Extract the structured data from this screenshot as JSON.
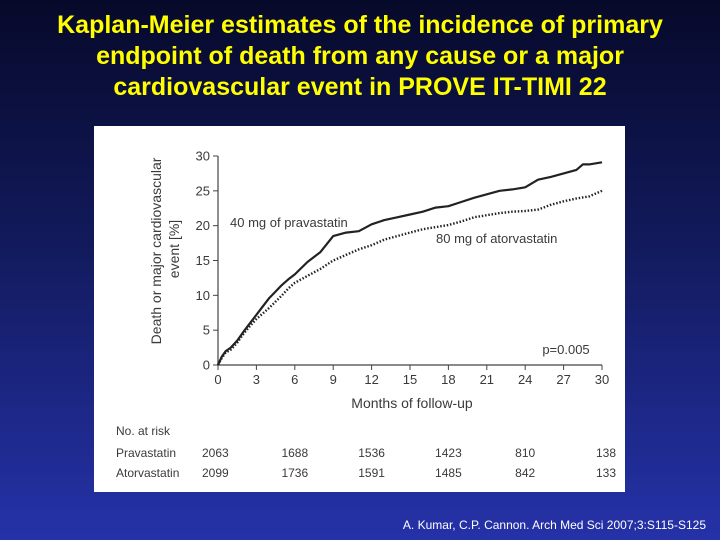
{
  "slide": {
    "title_lines": [
      "Kaplan-Meier estimates of the incidence of primary",
      "endpoint of death from any cause or a major",
      "cardiovascular event in PROVE IT-TIMI 22"
    ],
    "citation": "A. Kumar, C.P. Cannon. Arch Med Sci 2007;3:S115-S125"
  },
  "chart_data": {
    "type": "line",
    "title": "",
    "xlabel": "Months of follow-up",
    "ylabel_lines": [
      "Death or major cardiovascular",
      "event [%]"
    ],
    "xlim": [
      0,
      30
    ],
    "ylim": [
      0,
      30
    ],
    "xticks": [
      0,
      3,
      6,
      9,
      12,
      15,
      18,
      21,
      24,
      27,
      30
    ],
    "yticks": [
      0,
      5,
      10,
      15,
      20,
      25,
      30
    ],
    "annotation": "p=0.005",
    "series": [
      {
        "name": "40 mg of pravastatin",
        "style": "solid",
        "color": "#222222",
        "x": [
          0,
          0.3,
          0.6,
          1,
          1.5,
          2,
          2.5,
          3,
          4,
          5,
          5.5,
          6,
          7,
          8,
          9,
          10,
          11,
          12,
          13,
          14,
          15,
          16,
          17,
          18,
          19,
          20,
          21,
          22,
          23,
          24,
          25,
          26,
          27,
          28,
          28.5,
          29,
          30
        ],
        "y": [
          0,
          1.2,
          2,
          2.5,
          3.5,
          4.8,
          6,
          7.2,
          9.6,
          11.5,
          12.3,
          13,
          14.8,
          16.2,
          18.5,
          19,
          19.2,
          20.2,
          20.8,
          21.2,
          21.6,
          22,
          22.6,
          22.8,
          23.4,
          24,
          24.5,
          25,
          25.2,
          25.5,
          26.6,
          27,
          27.5,
          28,
          28.8,
          28.8,
          29.1
        ]
      },
      {
        "name": "80 mg of atorvastatin",
        "style": "dotted",
        "color": "#222222",
        "x": [
          0,
          0.3,
          0.6,
          1,
          1.5,
          2,
          2.5,
          3,
          4,
          5,
          5.5,
          6,
          7,
          8,
          9,
          10,
          11,
          12,
          13,
          14,
          15,
          16,
          17,
          18,
          19,
          20,
          21,
          22,
          23,
          24,
          25,
          26,
          27,
          28,
          29,
          30
        ],
        "y": [
          0,
          1,
          1.8,
          2.2,
          3.2,
          4.5,
          5.6,
          6.6,
          8.2,
          10,
          11,
          11.8,
          12.8,
          13.8,
          15,
          15.8,
          16.6,
          17.2,
          18,
          18.5,
          19,
          19.5,
          19.8,
          20.1,
          20.6,
          21.2,
          21.5,
          21.8,
          22,
          22.1,
          22.3,
          23,
          23.5,
          23.9,
          24.2,
          25
        ]
      }
    ],
    "risk_table": {
      "header": "No. at risk",
      "rows": [
        {
          "label": "Pravastatin",
          "values": [
            "2063",
            "1688",
            "1536",
            "1423",
            "810",
            "138"
          ]
        },
        {
          "label": "Atorvastatin",
          "values": [
            "2099",
            "1736",
            "1591",
            "1485",
            "842",
            "133"
          ]
        }
      ]
    }
  }
}
